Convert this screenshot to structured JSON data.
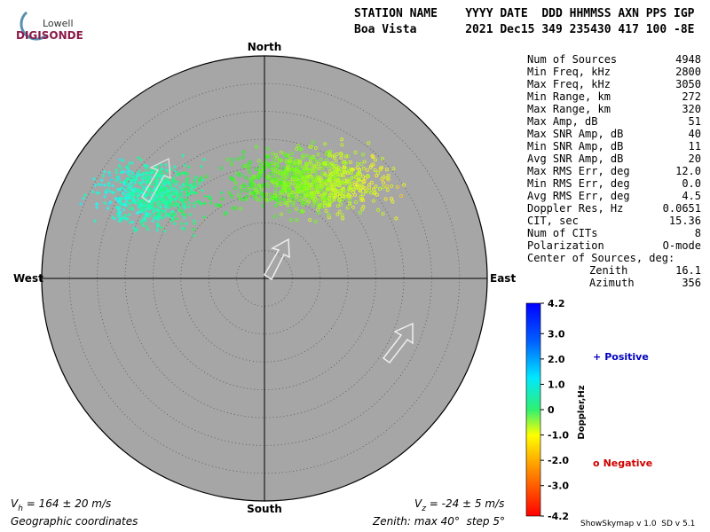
{
  "logo": {
    "top": "Lowell",
    "bottom": "DIGISONDE"
  },
  "header": {
    "labels": "STATION NAME    YYYY DATE  DDD HHMMSS AXN PPS IGP",
    "values": "Boa Vista       2021 Dec15 349 235430 417 100 -8E"
  },
  "compass": {
    "north": "North",
    "south": "South",
    "west": "West",
    "east": "East"
  },
  "stats": {
    "rows": [
      [
        "Num of Sources",
        "4948"
      ],
      [
        "Min Freq, kHz",
        "2800"
      ],
      [
        "Max Freq, kHz",
        "3050"
      ],
      [
        "Min Range, km",
        "272"
      ],
      [
        "Max Range, km",
        "320"
      ],
      [
        "Max Amp, dB",
        "51"
      ],
      [
        "Max SNR Amp, dB",
        "40"
      ],
      [
        "Min SNR Amp, dB",
        "11"
      ],
      [
        "Avg SNR Amp, dB",
        "20"
      ],
      [
        "Max RMS Err, deg",
        "12.0"
      ],
      [
        "Min RMS Err, deg",
        "0.0"
      ],
      [
        "Avg RMS Err, deg",
        "4.5"
      ],
      [
        "Doppler Res, Hz",
        "0.0651"
      ],
      [
        "CIT, sec",
        "15.36"
      ],
      [
        "Num of CITs",
        "8"
      ],
      [
        "Polarization",
        "O-mode"
      ]
    ],
    "center_title": "Center of Sources, deg:",
    "center_rows": [
      [
        "Zenith",
        "16.1"
      ],
      [
        "Azimuth",
        "356"
      ]
    ]
  },
  "colorbar": {
    "title": "Doppler,Hz",
    "lim": [
      -4.2,
      4.2
    ],
    "ticks": [
      4.2,
      {
        "value": 3,
        "label": "3.0"
      },
      {
        "value": 2,
        "label": "2.0"
      },
      {
        "value": 1,
        "label": "1.0"
      },
      0,
      {
        "value": -1,
        "label": "-1.0"
      },
      {
        "value": -2,
        "label": "-2.0"
      },
      {
        "value": -3,
        "label": "-3.0"
      },
      -4.2
    ]
  },
  "legend": {
    "positive_symbol": "+",
    "positive": "Positive",
    "negative_symbol": "o",
    "negative": "Negative"
  },
  "footer": {
    "vh_v": "V",
    "vh_sub": "h",
    "vh_rest": " = 164 ± 20 m/s",
    "vz_v": "V",
    "vz_sub": "z",
    "vz_rest": " = -24 ± 5 m/s",
    "coords": "Geographic coordinates",
    "zenith": "Zenith: max 40°  step 5°",
    "version": "ShowSkymap v 1.0  SD v 5.1"
  }
}
